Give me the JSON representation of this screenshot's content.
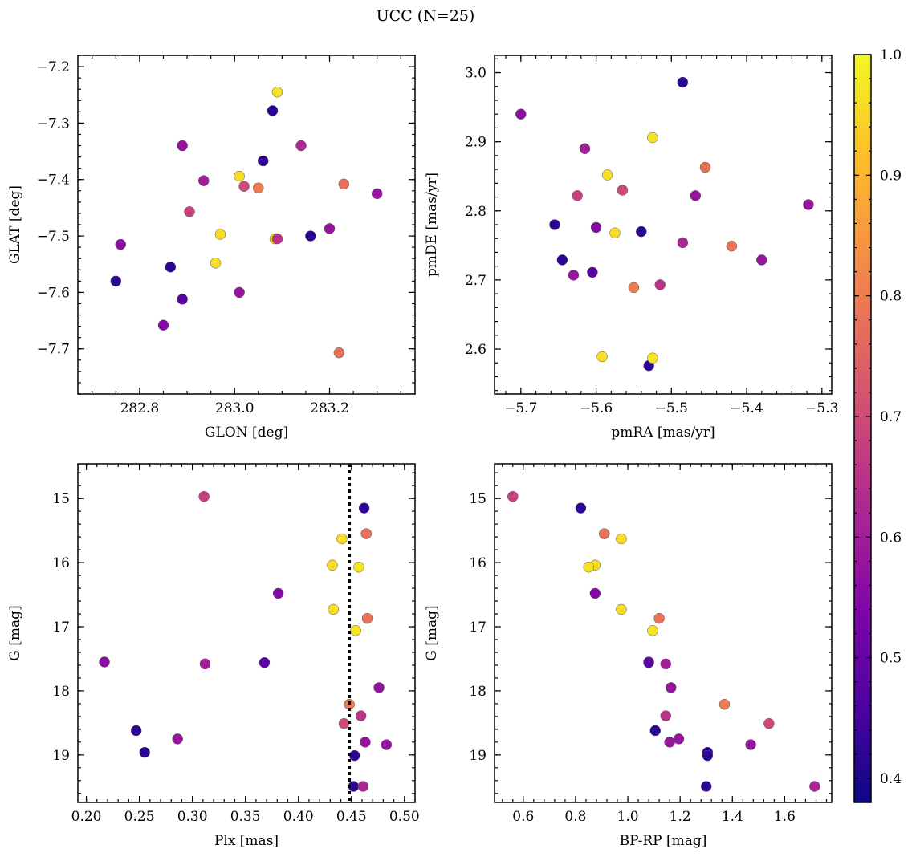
{
  "chart_data": {
    "type": "scatter",
    "title": "UCC (N=25)",
    "colorbar": {
      "range": [
        0.38,
        1.0
      ],
      "ticks": [
        0.4,
        0.5,
        0.6,
        0.7,
        0.8,
        0.9,
        1.0
      ],
      "tick_labels": [
        "0.4",
        "0.5",
        "0.6",
        "0.7",
        "0.8",
        "0.9",
        "1.0"
      ],
      "colormap": "plasma"
    },
    "members": {
      "glon": [
        282.76,
        282.75,
        282.865,
        282.89,
        282.905,
        282.935,
        282.89,
        282.85,
        282.96,
        282.97,
        283.01,
        283.02,
        283.05,
        283.06,
        283.08,
        283.085,
        283.09,
        283.09,
        283.14,
        283.16,
        283.2,
        283.22,
        283.23,
        283.3,
        283.01
      ],
      "glat": [
        -7.515,
        -7.58,
        -7.555,
        -7.34,
        -7.457,
        -7.402,
        -7.612,
        -7.658,
        -7.548,
        -7.497,
        -7.394,
        -7.412,
        -7.415,
        -7.367,
        -7.278,
        -7.505,
        -7.245,
        -7.505,
        -7.34,
        -7.5,
        -7.487,
        -7.707,
        -7.408,
        -7.425,
        -7.6
      ],
      "pmra": [
        -5.7,
        -5.655,
        -5.645,
        -5.63,
        -5.625,
        -5.615,
        -5.605,
        -5.6,
        -5.592,
        -5.585,
        -5.575,
        -5.565,
        -5.55,
        -5.54,
        -5.53,
        -5.525,
        -5.525,
        -5.515,
        -5.485,
        -5.485,
        -5.468,
        -5.455,
        -5.42,
        -5.38,
        -5.318
      ],
      "pmde": [
        2.94,
        2.78,
        2.729,
        2.707,
        2.822,
        2.89,
        2.711,
        2.776,
        2.589,
        2.852,
        2.768,
        2.83,
        2.689,
        2.77,
        2.576,
        2.906,
        2.587,
        2.693,
        2.754,
        2.986,
        2.822,
        2.863,
        2.749,
        2.729,
        2.809
      ],
      "plx": [
        0.217,
        0.247,
        0.255,
        0.286,
        0.311,
        0.312,
        0.368,
        0.381,
        0.432,
        0.433,
        0.441,
        0.443,
        0.448,
        0.452,
        0.453,
        0.454,
        0.457,
        0.459,
        0.461,
        0.462,
        0.463,
        0.464,
        0.465,
        0.476,
        0.483
      ],
      "g": [
        17.55,
        18.62,
        18.96,
        18.75,
        14.97,
        17.58,
        17.56,
        16.48,
        16.04,
        16.73,
        15.63,
        18.51,
        18.21,
        19.49,
        19.01,
        17.06,
        16.07,
        18.39,
        19.49,
        15.15,
        18.8,
        15.55,
        16.87,
        17.95,
        18.84
      ],
      "bprp": [
        1.08,
        1.105,
        1.305,
        1.195,
        0.56,
        1.145,
        1.08,
        0.875,
        0.875,
        0.975,
        0.975,
        1.54,
        1.37,
        1.3,
        1.305,
        1.095,
        0.85,
        1.145,
        1.715,
        0.82,
        1.16,
        0.91,
        1.12,
        1.165,
        1.47
      ],
      "prob": [
        0.56,
        0.42,
        0.42,
        0.58,
        0.68,
        0.6,
        0.48,
        0.55,
        0.96,
        0.96,
        0.96,
        0.7,
        0.8,
        0.42,
        0.42,
        0.97,
        0.97,
        0.65,
        0.62,
        0.42,
        0.58,
        0.78,
        0.78,
        0.58,
        0.58
      ]
    },
    "panels": [
      {
        "id": "glon-glat",
        "xlabel": "GLON [deg]",
        "ylabel": "GLAT [deg]",
        "x_field": "glon",
        "y_field": "glat",
        "xlim": [
          282.67,
          283.38
        ],
        "ylim": [
          -7.78,
          -7.18
        ],
        "y_inverted": false,
        "xticks": [
          282.8,
          283.0,
          283.2
        ],
        "xtick_labels": [
          "282.8",
          "283.0",
          "283.2"
        ],
        "yticks": [
          -7.2,
          -7.3,
          -7.4,
          -7.5,
          -7.6,
          -7.7
        ],
        "ytick_labels": [
          "−7.2",
          "−7.3",
          "−7.4",
          "−7.5",
          "−7.6",
          "−7.7"
        ],
        "xminor": 0.05,
        "yminor": 0.02
      },
      {
        "id": "pmra-pmde",
        "xlabel": "pmRA [mas/yr]",
        "ylabel": "pmDE [mas/yr]",
        "x_field": "pmra",
        "y_field": "pmde",
        "xlim": [
          -5.735,
          -5.287
        ],
        "ylim": [
          2.535,
          3.025
        ],
        "y_inverted": false,
        "xticks": [
          -5.7,
          -5.6,
          -5.5,
          -5.4,
          -5.3
        ],
        "xtick_labels": [
          "−5.7",
          "−5.6",
          "−5.5",
          "−5.4",
          "−5.3"
        ],
        "yticks": [
          2.6,
          2.7,
          2.8,
          2.9,
          3.0
        ],
        "ytick_labels": [
          "2.6",
          "2.7",
          "2.8",
          "2.9",
          "3.0"
        ],
        "xminor": 0.02,
        "yminor": 0.02
      },
      {
        "id": "plx-g",
        "xlabel": "Plx [mas]",
        "ylabel": "G [mag]",
        "x_field": "plx",
        "y_field": "g",
        "xlim": [
          0.192,
          0.51
        ],
        "ylim": [
          14.46,
          19.74
        ],
        "y_inverted": true,
        "xticks": [
          0.2,
          0.25,
          0.3,
          0.35,
          0.4,
          0.45,
          0.5
        ],
        "xtick_labels": [
          "0.20",
          "0.25",
          "0.30",
          "0.35",
          "0.40",
          "0.45",
          "0.50"
        ],
        "yticks": [
          15,
          16,
          17,
          18,
          19
        ],
        "ytick_labels": [
          "15",
          "16",
          "17",
          "18",
          "19"
        ],
        "xminor": 0.01,
        "yminor": 0.2,
        "vline": 0.448
      },
      {
        "id": "bprp-g",
        "xlabel": "BP-RP [mag]",
        "ylabel": "G [mag]",
        "x_field": "bprp",
        "y_field": "g",
        "xlim": [
          0.49,
          1.78
        ],
        "ylim": [
          14.46,
          19.74
        ],
        "y_inverted": true,
        "xticks": [
          0.6,
          0.8,
          1.0,
          1.2,
          1.4,
          1.6
        ],
        "xtick_labels": [
          "0.6",
          "0.8",
          "1.0",
          "1.2",
          "1.4",
          "1.6"
        ],
        "yticks": [
          15,
          16,
          17,
          18,
          19
        ],
        "ytick_labels": [
          "15",
          "16",
          "17",
          "18",
          "19"
        ],
        "xminor": 0.04,
        "yminor": 0.2
      }
    ]
  }
}
